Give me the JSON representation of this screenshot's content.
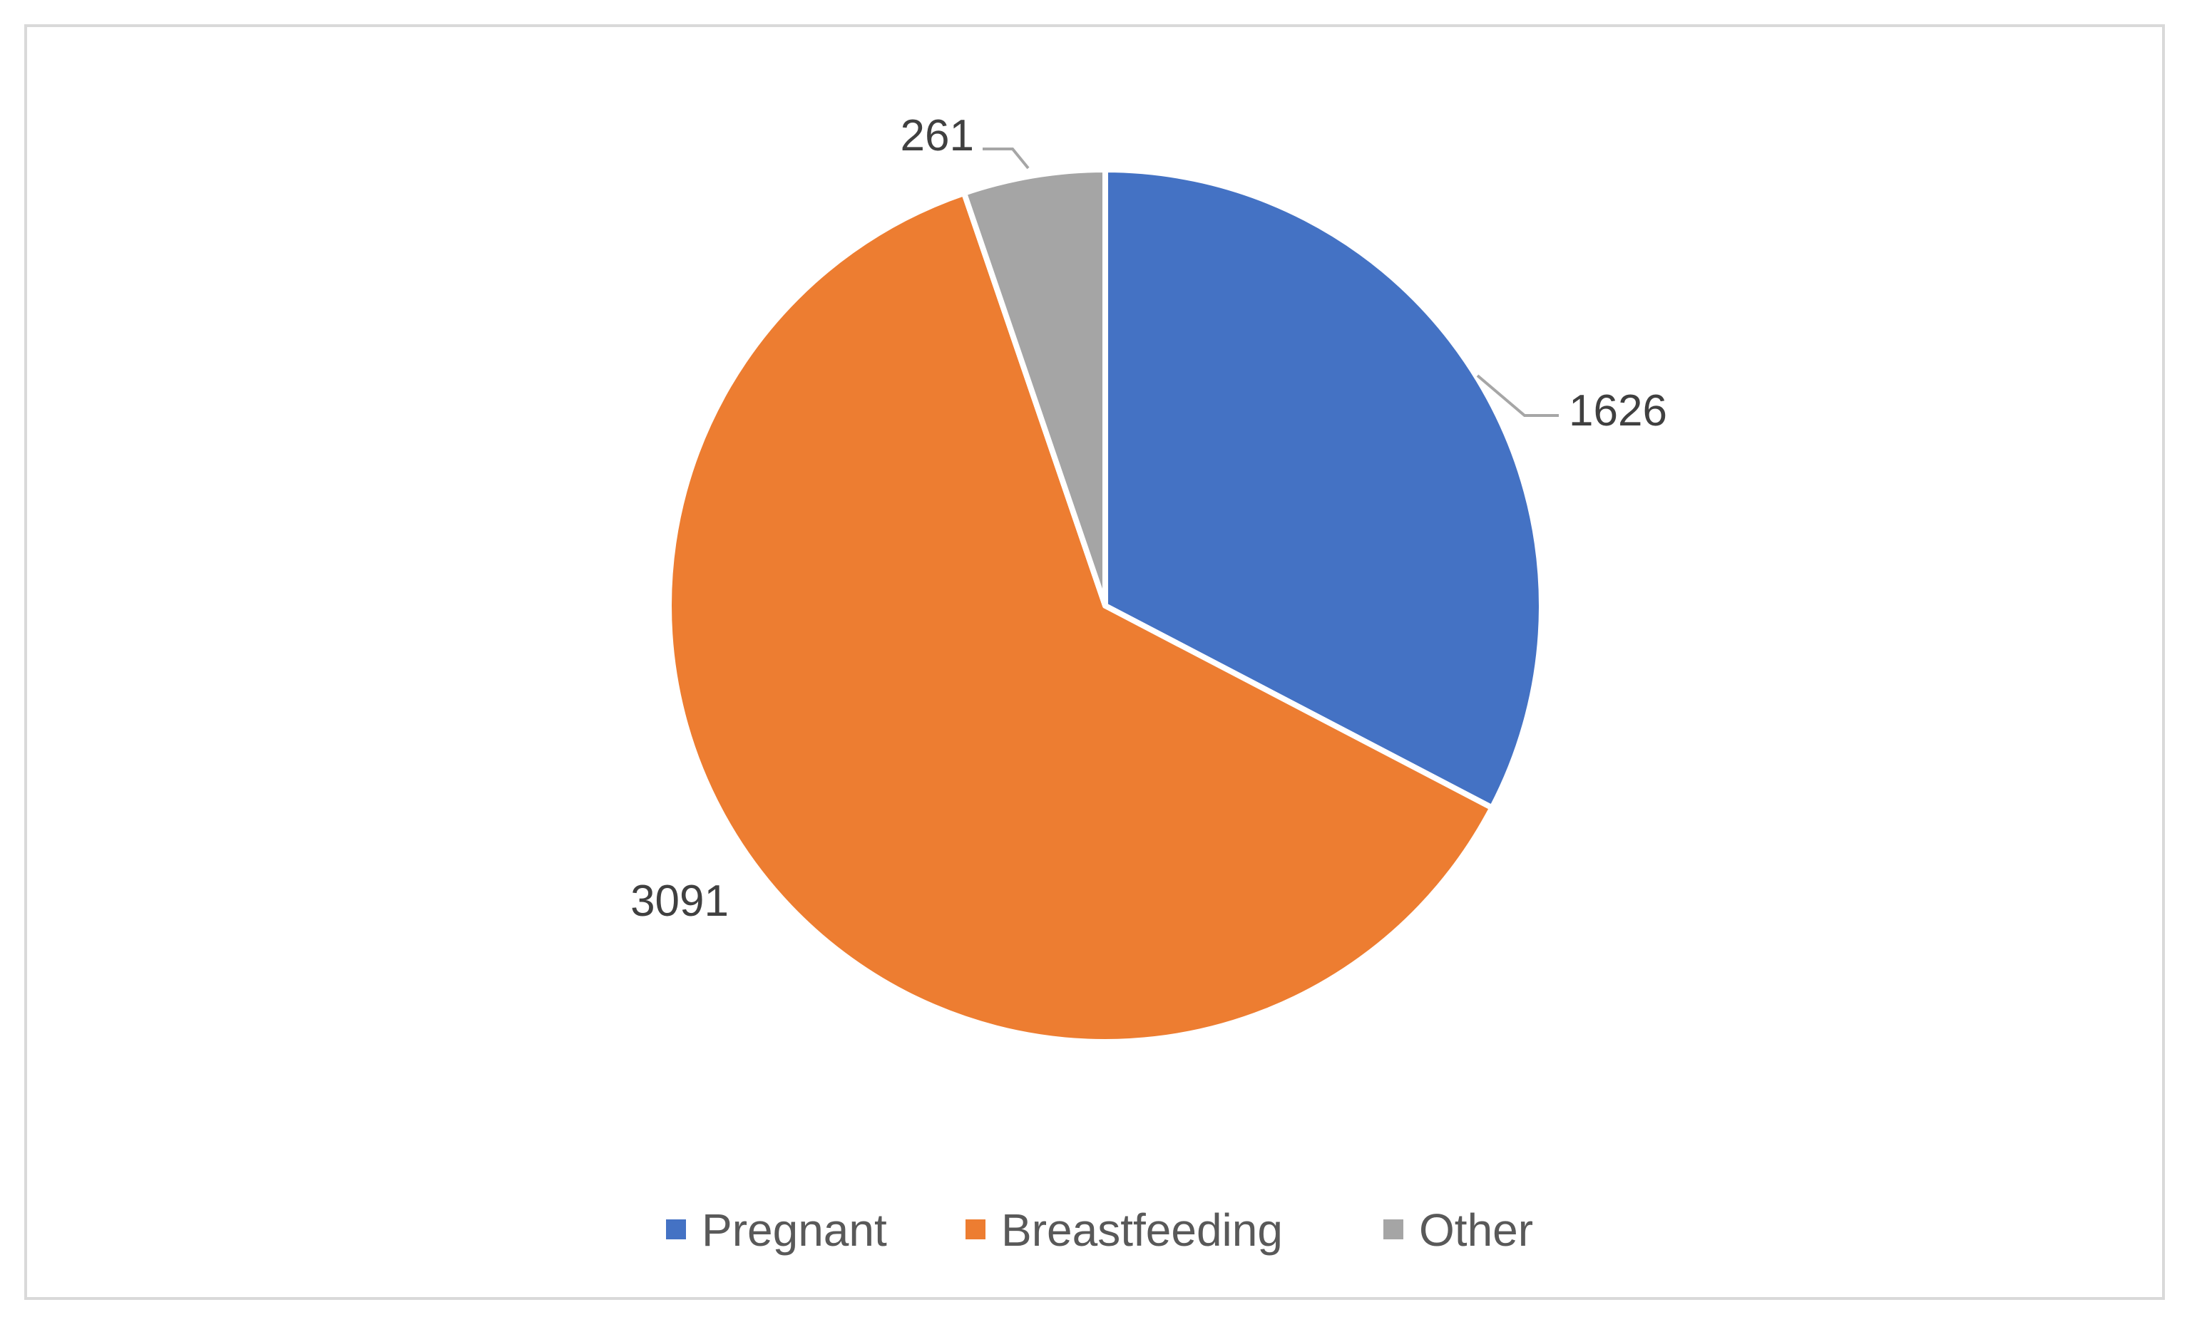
{
  "chart_data": {
    "type": "pie",
    "title": "",
    "categories": [
      "Pregnant",
      "Breastfeeding",
      "Other"
    ],
    "values": [
      1626,
      3091,
      261
    ],
    "colors": [
      "#4472c4",
      "#ed7d31",
      "#a5a5a5"
    ],
    "start_angle_deg": 0,
    "direction": "clockwise",
    "data_labels": [
      "1626",
      "3091",
      "261"
    ],
    "legend": {
      "position": "bottom",
      "entries": [
        "Pregnant",
        "Breastfeeding",
        "Other"
      ]
    },
    "leader_line_color": "#a6a6a6"
  }
}
